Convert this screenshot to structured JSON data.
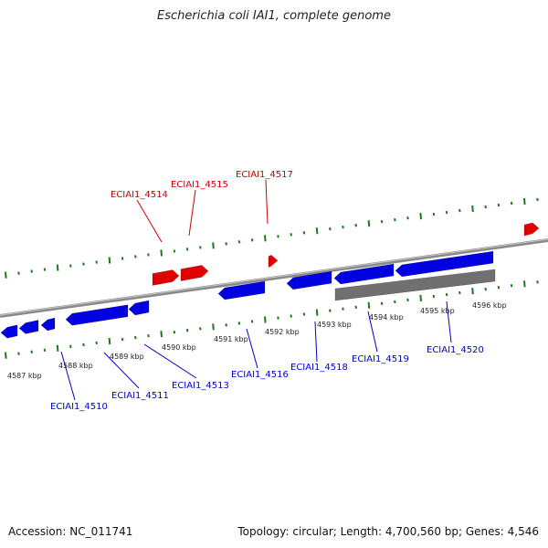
{
  "title": "Escherichia coli IAI1, complete genome",
  "footer": {
    "accession": "Accession: NC_011741",
    "summary": "Topology: circular; Length: 4,700,560 bp; Genes: 4,546"
  },
  "colors": {
    "forward_strand": "#e00000",
    "reverse_strand": "#0000e0",
    "pseudo_feature": "#707070",
    "backbone": "#8a8a8a",
    "tick": "#1a7a1a",
    "forward_label": "#cc0000",
    "reverse_label": "#0000cc"
  },
  "ticks": [
    "4587 kbp",
    "4588 kbp",
    "4589 kbp",
    "4590 kbp",
    "4591 kbp",
    "4592 kbp",
    "4593 kbp",
    "4594 kbp",
    "4595 kbp",
    "4596 kbp"
  ],
  "forward_labels": [
    "ECIAI1_4514",
    "ECIAI1_4515",
    "ECIAI1_4517"
  ],
  "reverse_labels": [
    "ECIAI1_4510",
    "ECIAI1_4511",
    "ECIAI1_4513",
    "ECIAI1_4516",
    "ECIAI1_4518",
    "ECIAI1_4519",
    "ECIAI1_4520"
  ]
}
